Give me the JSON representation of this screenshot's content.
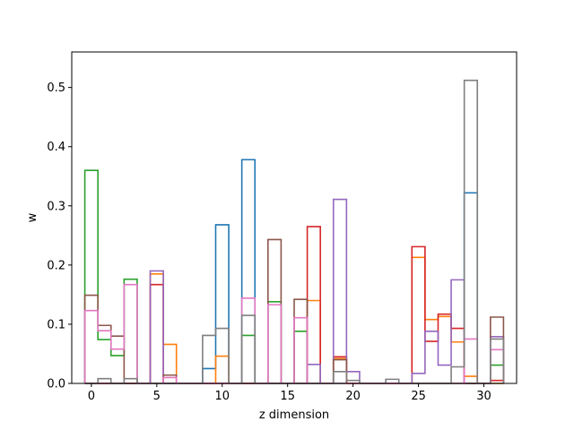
{
  "chart_data": {
    "type": "step-histogram",
    "xlabel": "z dimension",
    "ylabel": "w",
    "xlim": [
      -1.5,
      32.5
    ],
    "ylim": [
      0,
      0.56
    ],
    "xticks": [
      0,
      5,
      10,
      15,
      20,
      25,
      30
    ],
    "yticks": [
      0.0,
      0.1,
      0.2,
      0.3,
      0.4,
      0.5
    ],
    "ytick_labels": [
      "0.0",
      "0.1",
      "0.2",
      "0.3",
      "0.4",
      "0.5"
    ],
    "bin_start": 0,
    "bin_width": 1,
    "series": [
      {
        "color": "#1f77b4",
        "values": [
          0,
          0,
          0,
          0,
          0,
          0,
          0,
          0,
          0,
          0.025,
          0.268,
          0,
          0.378,
          0,
          0,
          0,
          0,
          0,
          0,
          0,
          0,
          0,
          0,
          0,
          0,
          0,
          0,
          0,
          0,
          0.322,
          0,
          0
        ]
      },
      {
        "color": "#ff7f0e",
        "values": [
          0,
          0,
          0,
          0,
          0,
          0.185,
          0.066,
          0,
          0,
          0,
          0.046,
          0,
          0,
          0,
          0,
          0,
          0,
          0.14,
          0,
          0.042,
          0,
          0,
          0,
          0,
          0,
          0.213,
          0.108,
          0.113,
          0.07,
          0.012,
          0,
          0
        ]
      },
      {
        "color": "#2ca02c",
        "values": [
          0.36,
          0.074,
          0.047,
          0.176,
          0,
          0,
          0,
          0,
          0,
          0,
          0,
          0,
          0.081,
          0,
          0.138,
          0,
          0.088,
          0,
          0,
          0,
          0,
          0,
          0,
          0,
          0,
          0,
          0,
          0,
          0,
          0,
          0,
          0.031
        ]
      },
      {
        "color": "#d62728",
        "values": [
          0,
          0,
          0,
          0,
          0,
          0.167,
          0,
          0,
          0,
          0,
          0,
          0,
          0,
          0,
          0,
          0,
          0,
          0.265,
          0,
          0.045,
          0,
          0,
          0,
          0,
          0,
          0.231,
          0.071,
          0.117,
          0.093,
          0,
          0,
          0.005
        ]
      },
      {
        "color": "#9467bd",
        "values": [
          0,
          0,
          0,
          0,
          0,
          0.19,
          0,
          0,
          0,
          0,
          0,
          0,
          0,
          0,
          0,
          0,
          0,
          0.032,
          0,
          0.311,
          0.02,
          0,
          0,
          0,
          0,
          0.017,
          0.088,
          0.031,
          0.175,
          0,
          0,
          0.079
        ]
      },
      {
        "color": "#8c564b",
        "values": [
          0.149,
          0.098,
          0.08,
          0,
          0,
          0,
          0.014,
          0,
          0,
          0,
          0,
          0,
          0,
          0,
          0.243,
          0,
          0.142,
          0,
          0,
          0.04,
          0,
          0,
          0,
          0,
          0,
          0,
          0,
          0,
          0,
          0,
          0,
          0.112
        ]
      },
      {
        "color": "#e377c2",
        "values": [
          0.123,
          0.089,
          0.058,
          0.167,
          0,
          0,
          0.01,
          0,
          0,
          0,
          0,
          0,
          0.144,
          0,
          0.133,
          0,
          0.111,
          0,
          0,
          0,
          0,
          0,
          0,
          0,
          0,
          0,
          0,
          0,
          0,
          0.075,
          0,
          0.057
        ]
      },
      {
        "color": "#7f7f7f",
        "values": [
          0,
          0.008,
          0,
          0.008,
          0,
          0,
          0,
          0,
          0,
          0.081,
          0.093,
          0,
          0.115,
          0,
          0,
          0,
          0,
          0,
          0,
          0.02,
          0.005,
          0,
          0,
          0.007,
          0,
          0,
          0,
          0,
          0.028,
          0.512,
          0,
          0.075
        ]
      }
    ]
  }
}
